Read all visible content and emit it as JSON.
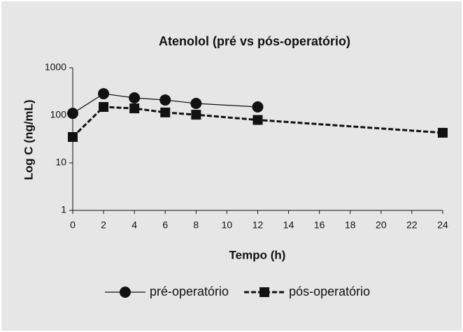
{
  "chart_data": {
    "type": "line",
    "title": "Atenolol (pré vs pós-operatório)",
    "xlabel": "Tempo (h)",
    "ylabel": "Log C (ng/mL)",
    "xlim": [
      0,
      24
    ],
    "xticks": [
      0,
      2,
      4,
      6,
      8,
      10,
      12,
      14,
      16,
      18,
      20,
      22,
      24
    ],
    "ylim": [
      1,
      1000
    ],
    "yticks": [
      1,
      10,
      100,
      1000
    ],
    "yscale": "log",
    "grid": false,
    "legend": "bottom",
    "series": [
      {
        "name": "pré-operatório",
        "color": "#111111",
        "marker": "circle",
        "dashed": false,
        "x": [
          0,
          2,
          4,
          6,
          8,
          12
        ],
        "values": [
          110,
          285,
          233,
          210,
          178,
          150
        ]
      },
      {
        "name": "pós-operatório",
        "color": "#111111",
        "marker": "square",
        "dashed": true,
        "x": [
          0,
          2,
          4,
          6,
          8,
          12,
          24
        ],
        "values": [
          35,
          150,
          140,
          115,
          103,
          80,
          43
        ]
      }
    ]
  }
}
